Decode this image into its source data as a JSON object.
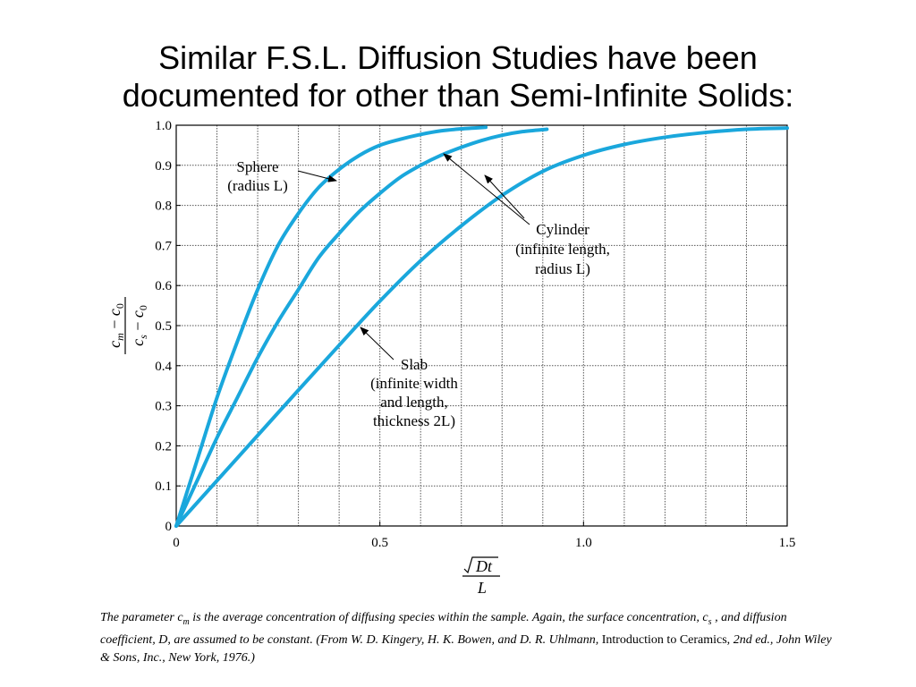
{
  "slide": {
    "title_line1": "Similar F.S.L. Diffusion Studies have been",
    "title_line2": "documented for other than Semi-Infinite Solids:"
  },
  "chart_data": {
    "type": "line",
    "xlim": [
      0,
      1.5
    ],
    "ylim": [
      0,
      1.0
    ],
    "x_ticks": [
      "0",
      "0.5",
      "1.0",
      "1.5"
    ],
    "y_ticks": [
      "0",
      "0.1",
      "0.2",
      "0.3",
      "0.4",
      "0.5",
      "0.6",
      "0.7",
      "0.8",
      "0.9",
      "1.0"
    ],
    "grid": true,
    "series_color": "#1aa7dc",
    "series": [
      {
        "label_lines": [
          "Sphere",
          "(radius L)"
        ],
        "x": [
          0,
          0.05,
          0.1,
          0.15,
          0.2,
          0.25,
          0.3,
          0.35,
          0.4,
          0.45,
          0.5,
          0.55,
          0.6,
          0.65,
          0.7,
          0.76
        ],
        "y": [
          0,
          0.16,
          0.32,
          0.46,
          0.59,
          0.7,
          0.78,
          0.845,
          0.89,
          0.925,
          0.95,
          0.965,
          0.977,
          0.986,
          0.991,
          0.995
        ]
      },
      {
        "label_lines": [
          "Cylinder",
          "(infinite length,",
          "radius L)"
        ],
        "x": [
          0,
          0.05,
          0.1,
          0.15,
          0.2,
          0.25,
          0.3,
          0.35,
          0.4,
          0.45,
          0.5,
          0.55,
          0.6,
          0.65,
          0.7,
          0.75,
          0.8,
          0.85,
          0.91
        ],
        "y": [
          0,
          0.11,
          0.22,
          0.32,
          0.42,
          0.51,
          0.59,
          0.67,
          0.73,
          0.785,
          0.83,
          0.87,
          0.9,
          0.925,
          0.945,
          0.962,
          0.975,
          0.984,
          0.99
        ]
      },
      {
        "label_lines": [
          "Slab",
          "(infinite width",
          "and length,",
          "thickness 2L)"
        ],
        "x": [
          0,
          0.1,
          0.2,
          0.3,
          0.4,
          0.5,
          0.6,
          0.7,
          0.8,
          0.9,
          1.0,
          1.1,
          1.2,
          1.3,
          1.4,
          1.5
        ],
        "y": [
          0,
          0.113,
          0.226,
          0.339,
          0.451,
          0.561,
          0.662,
          0.749,
          0.825,
          0.885,
          0.925,
          0.952,
          0.97,
          0.982,
          0.99,
          0.993
        ]
      }
    ]
  }
}
